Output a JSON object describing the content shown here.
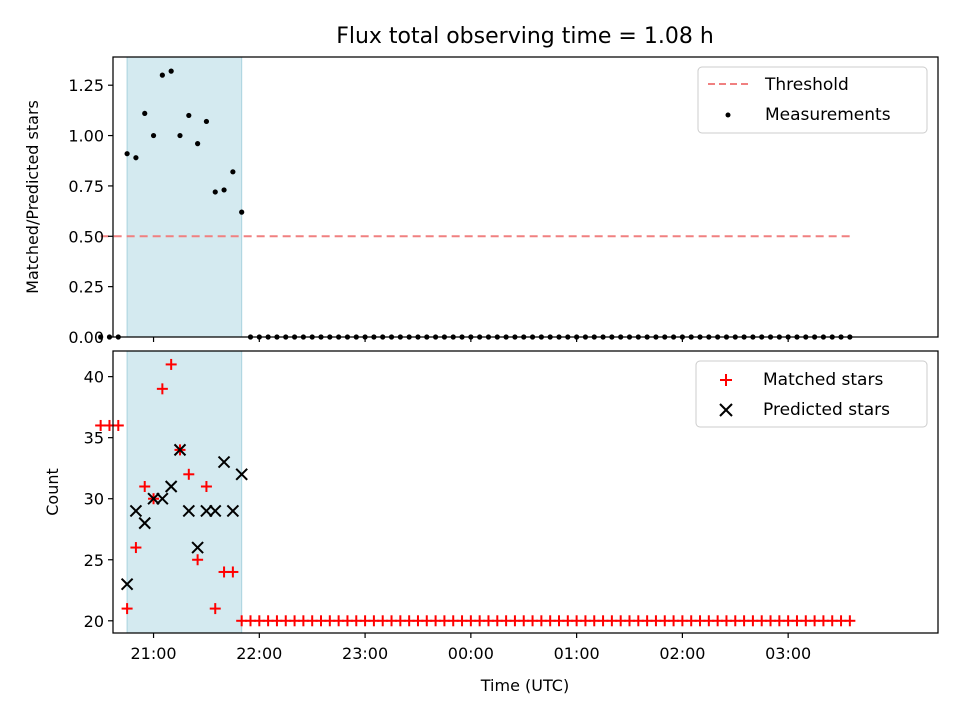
{
  "chart_data": [
    {
      "type": "scatter",
      "title": "Flux total observing time = 1.08 h",
      "xlabel": "",
      "ylabel": "Matched/Predicted stars",
      "ylim": [
        0,
        1.4
      ],
      "yticks": [
        "0.00",
        "0.25",
        "0.50",
        "0.75",
        "1.00",
        "1.25"
      ],
      "shaded_region": {
        "x_start": "20:45",
        "x_end": "21:50",
        "color": "#d4eaf0"
      },
      "series": [
        {
          "name": "Threshold",
          "kind": "dashed-line",
          "color": "#f08080",
          "x": [
            "20:30",
            "03:35"
          ],
          "y": [
            0.5,
            0.5
          ]
        },
        {
          "name": "Measurements",
          "kind": "dots",
          "color": "#000000",
          "points": [
            {
              "x": "20:30",
              "y": 0
            },
            {
              "x": "20:35",
              "y": 0
            },
            {
              "x": "20:40",
              "y": 0
            },
            {
              "x": "20:45",
              "y": 0.91
            },
            {
              "x": "20:50",
              "y": 0.89
            },
            {
              "x": "20:55",
              "y": 1.11
            },
            {
              "x": "21:00",
              "y": 1.0
            },
            {
              "x": "21:05",
              "y": 1.3
            },
            {
              "x": "21:10",
              "y": 1.32
            },
            {
              "x": "21:15",
              "y": 1.0
            },
            {
              "x": "21:20",
              "y": 1.1
            },
            {
              "x": "21:25",
              "y": 0.96
            },
            {
              "x": "21:30",
              "y": 1.07
            },
            {
              "x": "21:35",
              "y": 0.72
            },
            {
              "x": "21:40",
              "y": 0.73
            },
            {
              "x": "21:45",
              "y": 0.82
            },
            {
              "x": "21:50",
              "y": 0.62
            }
          ],
          "zero_from": "21:55",
          "zero_to": "03:35",
          "zero_step_minutes": 5
        }
      ],
      "legend": "top-right"
    },
    {
      "type": "scatter",
      "title": "",
      "xlabel": "Time (UTC)",
      "ylabel": "Count",
      "ylim": [
        19,
        42
      ],
      "yticks": [
        "20",
        "25",
        "30",
        "35",
        "40"
      ],
      "xticks": [
        "21:00",
        "22:00",
        "23:00",
        "00:00",
        "01:00",
        "02:00",
        "03:00"
      ],
      "shaded_region": {
        "x_start": "20:45",
        "x_end": "21:50",
        "color": "#d4eaf0"
      },
      "series": [
        {
          "name": "Matched stars",
          "kind": "plus",
          "color": "#ff0000",
          "points": [
            {
              "x": "20:30",
              "y": 36
            },
            {
              "x": "20:35",
              "y": 36
            },
            {
              "x": "20:40",
              "y": 36
            },
            {
              "x": "20:45",
              "y": 21
            },
            {
              "x": "20:50",
              "y": 26
            },
            {
              "x": "20:55",
              "y": 31
            },
            {
              "x": "21:00",
              "y": 30
            },
            {
              "x": "21:05",
              "y": 39
            },
            {
              "x": "21:10",
              "y": 41
            },
            {
              "x": "21:15",
              "y": 34
            },
            {
              "x": "21:20",
              "y": 32
            },
            {
              "x": "21:25",
              "y": 25
            },
            {
              "x": "21:30",
              "y": 31
            },
            {
              "x": "21:35",
              "y": 21
            },
            {
              "x": "21:40",
              "y": 24
            },
            {
              "x": "21:45",
              "y": 24
            }
          ],
          "constant_from": "21:50",
          "constant_to": "03:35",
          "constant_step_minutes": 5,
          "constant_value": 20
        },
        {
          "name": "Predicted stars",
          "kind": "x",
          "color": "#000000",
          "points": [
            {
              "x": "20:45",
              "y": 23
            },
            {
              "x": "20:50",
              "y": 29
            },
            {
              "x": "20:55",
              "y": 28
            },
            {
              "x": "21:00",
              "y": 30
            },
            {
              "x": "21:05",
              "y": 30
            },
            {
              "x": "21:10",
              "y": 31
            },
            {
              "x": "21:15",
              "y": 34
            },
            {
              "x": "21:20",
              "y": 29
            },
            {
              "x": "21:25",
              "y": 26
            },
            {
              "x": "21:30",
              "y": 29
            },
            {
              "x": "21:35",
              "y": 29
            },
            {
              "x": "21:40",
              "y": 33
            },
            {
              "x": "21:45",
              "y": 29
            },
            {
              "x": "21:50",
              "y": 32
            }
          ]
        }
      ],
      "legend": "top-right"
    }
  ]
}
